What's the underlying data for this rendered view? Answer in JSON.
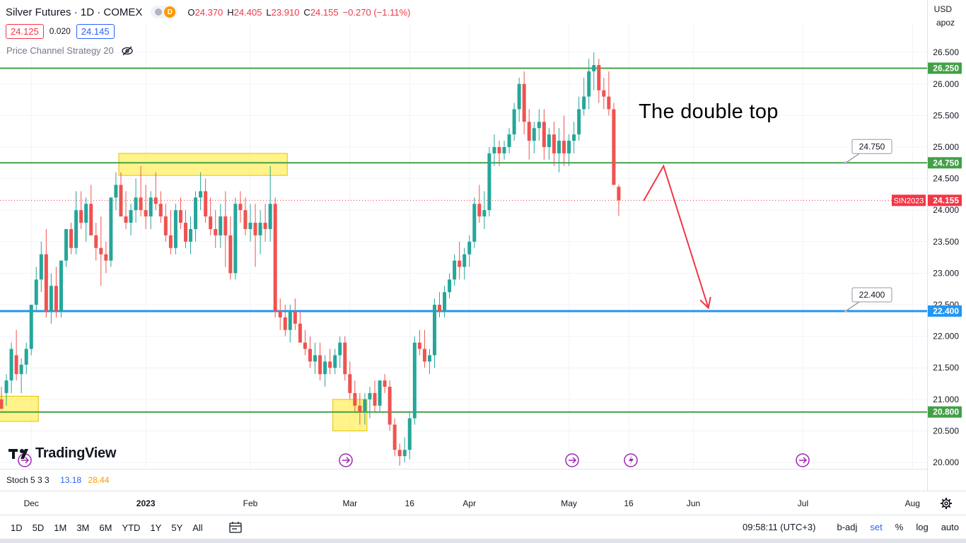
{
  "header": {
    "title": "Silver Futures · 1D · COMEX",
    "badge": "D",
    "ohlc": [
      {
        "k": "O",
        "v": "24.370"
      },
      {
        "k": "H",
        "v": "24.405"
      },
      {
        "k": "L",
        "v": "23.910"
      },
      {
        "k": "C",
        "v": "24.155"
      }
    ],
    "change": "−0.270 (−1.11%)"
  },
  "quote": {
    "sell": "24.125",
    "spread": "0.020",
    "buy": "24.145"
  },
  "strategy": {
    "label": "Price Channel Strategy 20",
    "icon": "eye-off-icon"
  },
  "currency": "USD",
  "unit_label": "apoz",
  "logo": {
    "text": "TradingView"
  },
  "stoch": {
    "label": "Stoch 5 3 3",
    "k": "13.18",
    "d": "28.44"
  },
  "annotation": {
    "text": "The double top"
  },
  "bottombar": {
    "ranges": [
      "1D",
      "5D",
      "1M",
      "3M",
      "6M",
      "YTD",
      "1Y",
      "5Y",
      "All"
    ],
    "time": "09:58:11 (UTC+3)",
    "badj": "b-adj",
    "set": "set",
    "pct": "%",
    "log": "log",
    "auto": "auto"
  },
  "colors": {
    "up": "#26a69a",
    "down": "#ef5350",
    "green_line": "#43a047",
    "blue_line": "#2196f3",
    "highlight": "#ffeb3b",
    "arrow": "#f23645",
    "price_tag": "#f23645"
  },
  "chart_data": {
    "type": "candlestick",
    "title": "Silver Futures · 1D · COMEX",
    "symbol": "SIN2023",
    "last_price": 24.155,
    "ylim": [
      19.9,
      26.95
    ],
    "y_ticks": [
      "20.000",
      "20.500",
      "21.000",
      "21.500",
      "22.000",
      "22.500",
      "23.000",
      "23.500",
      "24.000",
      "24.500",
      "25.000",
      "25.500",
      "26.000",
      "26.500"
    ],
    "x_ticks": [
      "Dec",
      "2023",
      "Feb",
      "Mar",
      "16",
      "Apr",
      "May",
      "16",
      "Jun",
      "Jul",
      "Aug"
    ],
    "x_tick_bars": [
      6,
      29,
      50,
      70,
      82,
      94,
      114,
      126,
      139,
      161,
      183
    ],
    "candles": [
      [
        21.0,
        21.2,
        20.85,
        20.85
      ],
      [
        21.1,
        21.4,
        20.9,
        21.3
      ],
      [
        21.3,
        21.9,
        21.1,
        21.8
      ],
      [
        21.7,
        22.1,
        21.3,
        21.4
      ],
      [
        21.4,
        21.65,
        21.1,
        21.55
      ],
      [
        21.55,
        21.9,
        21.4,
        21.8
      ],
      [
        21.8,
        22.5,
        21.7,
        22.5
      ],
      [
        22.5,
        23.1,
        22.4,
        22.9
      ],
      [
        22.9,
        23.5,
        22.7,
        23.3
      ],
      [
        23.3,
        23.7,
        22.3,
        22.4
      ],
      [
        22.4,
        23.0,
        22.2,
        22.8
      ],
      [
        22.8,
        23.1,
        22.3,
        22.4
      ],
      [
        22.4,
        23.2,
        22.3,
        23.2
      ],
      [
        23.2,
        23.7,
        23.1,
        23.7
      ],
      [
        23.7,
        23.8,
        23.3,
        23.4
      ],
      [
        23.4,
        24.3,
        23.3,
        24.0
      ],
      [
        24.0,
        24.3,
        23.7,
        23.8
      ],
      [
        23.8,
        24.2,
        23.5,
        24.1
      ],
      [
        24.1,
        24.4,
        23.6,
        23.6
      ],
      [
        23.6,
        23.8,
        23.2,
        23.4
      ],
      [
        23.4,
        23.9,
        22.8,
        23.3
      ],
      [
        23.3,
        23.5,
        23.0,
        23.2
      ],
      [
        23.2,
        24.2,
        23.1,
        24.2
      ],
      [
        24.2,
        24.6,
        24.0,
        24.4
      ],
      [
        24.4,
        24.6,
        23.9,
        23.9
      ],
      [
        23.9,
        24.3,
        23.7,
        23.8
      ],
      [
        23.8,
        24.1,
        23.6,
        24.0
      ],
      [
        24.0,
        24.5,
        23.8,
        24.2
      ],
      [
        24.2,
        24.7,
        23.9,
        24.0
      ],
      [
        24.0,
        24.4,
        23.7,
        23.9
      ],
      [
        23.9,
        24.3,
        23.7,
        24.2
      ],
      [
        24.2,
        24.6,
        24.0,
        24.1
      ],
      [
        24.1,
        24.3,
        23.8,
        23.9
      ],
      [
        23.9,
        24.1,
        23.5,
        23.6
      ],
      [
        23.6,
        24.0,
        23.3,
        23.4
      ],
      [
        23.4,
        24.1,
        23.3,
        24.0
      ],
      [
        24.0,
        24.2,
        23.7,
        23.8
      ],
      [
        23.8,
        24.0,
        23.4,
        23.5
      ],
      [
        23.5,
        23.9,
        23.3,
        23.7
      ],
      [
        23.7,
        24.3,
        23.5,
        24.2
      ],
      [
        24.2,
        24.6,
        24.0,
        24.3
      ],
      [
        24.3,
        24.5,
        23.8,
        23.9
      ],
      [
        23.9,
        24.2,
        23.6,
        23.7
      ],
      [
        23.7,
        24.0,
        23.4,
        23.6
      ],
      [
        23.6,
        24.1,
        23.4,
        23.9
      ],
      [
        23.9,
        24.3,
        23.1,
        23.6
      ],
      [
        23.6,
        23.9,
        22.9,
        23.0
      ],
      [
        23.0,
        24.2,
        22.9,
        24.1
      ],
      [
        24.1,
        24.3,
        23.8,
        24.0
      ],
      [
        24.0,
        24.2,
        23.6,
        23.7
      ],
      [
        23.7,
        24.1,
        23.5,
        23.8
      ],
      [
        23.8,
        24.1,
        23.1,
        23.6
      ],
      [
        23.6,
        24.0,
        23.3,
        23.8
      ],
      [
        23.8,
        24.1,
        23.5,
        23.7
      ],
      [
        23.7,
        24.7,
        23.5,
        24.1
      ],
      [
        24.1,
        24.2,
        22.3,
        22.4
      ],
      [
        22.4,
        22.6,
        22.1,
        22.3
      ],
      [
        22.3,
        22.5,
        22.0,
        22.1
      ],
      [
        22.1,
        22.5,
        21.9,
        22.4
      ],
      [
        22.4,
        22.6,
        22.1,
        22.2
      ],
      [
        22.2,
        22.4,
        21.9,
        21.9
      ],
      [
        21.9,
        22.1,
        21.7,
        21.8
      ],
      [
        21.8,
        22.0,
        21.5,
        21.6
      ],
      [
        21.6,
        21.9,
        21.4,
        21.7
      ],
      [
        21.7,
        21.9,
        21.3,
        21.4
      ],
      [
        21.4,
        21.7,
        21.2,
        21.6
      ],
      [
        21.6,
        21.8,
        21.4,
        21.5
      ],
      [
        21.5,
        21.8,
        21.4,
        21.7
      ],
      [
        21.7,
        22.0,
        21.5,
        21.9
      ],
      [
        21.9,
        22.0,
        21.3,
        21.4
      ],
      [
        21.4,
        21.6,
        21.0,
        21.1
      ],
      [
        21.1,
        21.3,
        20.8,
        20.9
      ],
      [
        20.9,
        21.1,
        20.6,
        20.8
      ],
      [
        20.8,
        21.1,
        20.6,
        21.0
      ],
      [
        21.0,
        21.2,
        20.7,
        21.1
      ],
      [
        21.1,
        21.3,
        20.8,
        20.9
      ],
      [
        20.9,
        21.3,
        20.8,
        21.3
      ],
      [
        21.3,
        21.4,
        21.1,
        21.2
      ],
      [
        21.2,
        21.3,
        20.5,
        20.6
      ],
      [
        20.6,
        20.7,
        20.1,
        20.2
      ],
      [
        20.2,
        20.3,
        19.95,
        20.1
      ],
      [
        20.1,
        20.4,
        20.0,
        20.2
      ],
      [
        20.2,
        20.8,
        20.05,
        20.7
      ],
      [
        20.7,
        22.0,
        20.6,
        21.9
      ],
      [
        21.9,
        22.1,
        21.7,
        21.8
      ],
      [
        21.8,
        22.1,
        21.5,
        21.6
      ],
      [
        21.6,
        21.8,
        21.4,
        21.7
      ],
      [
        21.7,
        22.6,
        21.5,
        22.5
      ],
      [
        22.5,
        22.7,
        22.3,
        22.4
      ],
      [
        22.4,
        22.8,
        22.3,
        22.7
      ],
      [
        22.7,
        23.0,
        22.6,
        22.9
      ],
      [
        22.9,
        23.3,
        22.8,
        23.2
      ],
      [
        23.2,
        23.5,
        22.9,
        23.1
      ],
      [
        23.1,
        23.4,
        22.9,
        23.3
      ],
      [
        23.3,
        23.6,
        23.1,
        23.5
      ],
      [
        23.5,
        24.2,
        23.4,
        24.1
      ],
      [
        24.1,
        24.4,
        23.8,
        23.9
      ],
      [
        23.9,
        24.3,
        23.7,
        24.0
      ],
      [
        24.0,
        25.0,
        23.9,
        24.9
      ],
      [
        24.9,
        25.2,
        24.7,
        25.0
      ],
      [
        25.0,
        25.1,
        24.7,
        24.9
      ],
      [
        24.9,
        25.1,
        24.8,
        25.0
      ],
      [
        25.0,
        25.3,
        24.9,
        25.2
      ],
      [
        25.2,
        25.7,
        25.1,
        25.6
      ],
      [
        25.6,
        26.1,
        25.4,
        26.0
      ],
      [
        26.0,
        26.2,
        25.2,
        25.4
      ],
      [
        25.4,
        25.6,
        24.8,
        25.1
      ],
      [
        25.1,
        25.4,
        24.9,
        25.3
      ],
      [
        25.3,
        25.6,
        25.1,
        25.4
      ],
      [
        25.4,
        25.6,
        24.8,
        25.0
      ],
      [
        25.0,
        25.3,
        24.8,
        25.2
      ],
      [
        25.2,
        25.4,
        24.7,
        24.9
      ],
      [
        24.9,
        25.3,
        24.6,
        25.1
      ],
      [
        25.1,
        25.5,
        24.7,
        24.9
      ],
      [
        24.9,
        25.2,
        24.7,
        25.1
      ],
      [
        25.1,
        25.4,
        24.9,
        25.2
      ],
      [
        25.2,
        25.8,
        25.1,
        25.6
      ],
      [
        25.6,
        26.1,
        25.5,
        25.8
      ],
      [
        25.8,
        26.4,
        25.6,
        26.2
      ],
      [
        26.2,
        26.5,
        25.9,
        26.3
      ],
      [
        26.3,
        26.4,
        25.7,
        25.9
      ],
      [
        25.9,
        26.1,
        25.6,
        25.8
      ],
      [
        25.8,
        26.2,
        25.5,
        25.6
      ],
      [
        25.6,
        25.7,
        24.4,
        24.4
      ],
      [
        24.37,
        24.405,
        23.91,
        24.155
      ]
    ],
    "horizontal_lines": [
      {
        "y": 26.25,
        "label": "26.250",
        "color": "#43a047"
      },
      {
        "y": 24.75,
        "label": "24.750",
        "color": "#43a047"
      },
      {
        "y": 22.4,
        "label": "22.400",
        "color": "#2196f3"
      },
      {
        "y": 20.8,
        "label": "20.800",
        "color": "#43a047"
      }
    ],
    "callouts": [
      "24.750",
      "22.400"
    ],
    "projection_path": [
      [
        129,
        24.15
      ],
      [
        133,
        24.7
      ],
      [
        142,
        22.45
      ]
    ],
    "grid": true,
    "legend": "none"
  }
}
